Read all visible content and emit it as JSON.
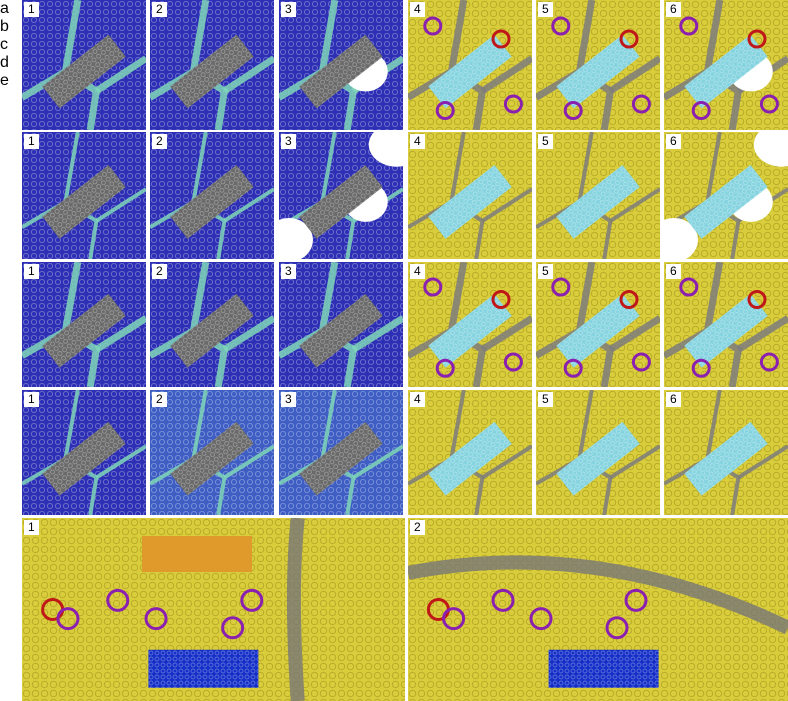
{
  "rows": [
    {
      "label": "a",
      "panels": [
        "1",
        "2",
        "3",
        "4",
        "5",
        "6"
      ]
    },
    {
      "label": "b",
      "panels": [
        "1",
        "2",
        "3",
        "4",
        "5",
        "6"
      ]
    },
    {
      "label": "c",
      "panels": [
        "1",
        "2",
        "3",
        "4",
        "5",
        "6"
      ]
    },
    {
      "label": "d",
      "panels": [
        "1",
        "2",
        "3",
        "4",
        "5",
        "6"
      ]
    },
    {
      "label": "e",
      "panels": [
        "1",
        "2"
      ]
    }
  ]
}
